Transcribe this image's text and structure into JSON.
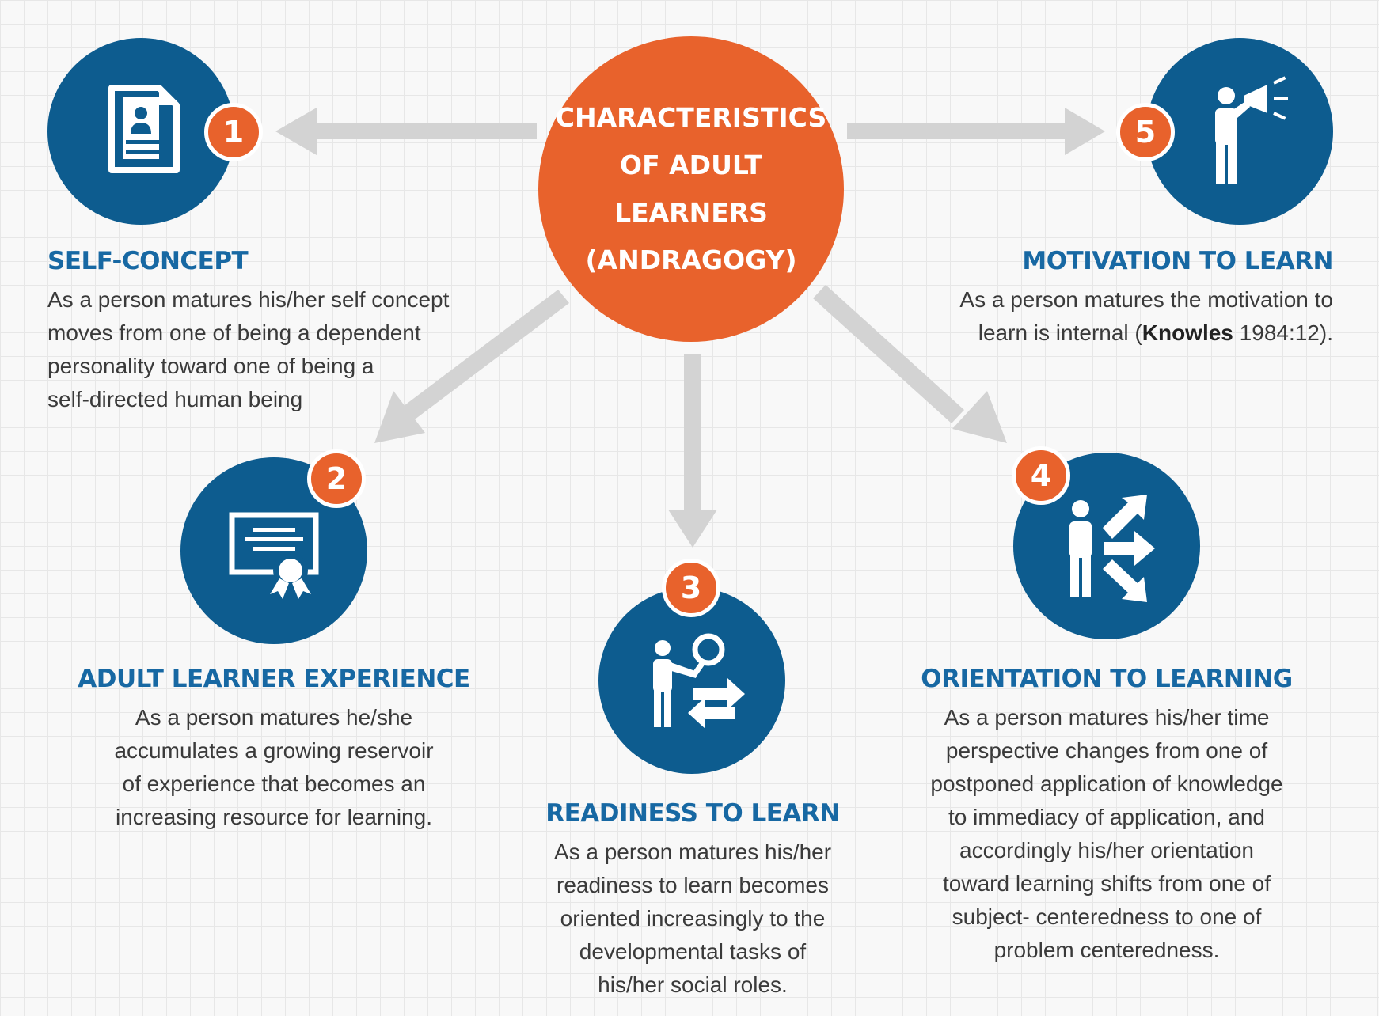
{
  "center": {
    "title_lines": [
      "CHARACTERISTICS",
      "OF ADULT LEARNERS",
      "(ANDRAGOGY)"
    ]
  },
  "colors": {
    "orange": "#e8622c",
    "blue": "#0d5c8f",
    "heading": "#1768a3",
    "arrow": "#d3d3d3"
  },
  "items": [
    {
      "number": "1",
      "icon": "document-profile-icon",
      "title": "SELF-CONCEPT",
      "lines": [
        "As a person matures his/her self concept",
        "moves from one of being a dependent",
        "personality toward one of being a",
        "self-directed human being"
      ]
    },
    {
      "number": "2",
      "icon": "certificate-icon",
      "title": "ADULT LEARNER EXPERIENCE",
      "lines": [
        "As a person matures he/she",
        "accumulates a growing reservoir",
        "of experience that becomes an",
        "increasing resource for learning."
      ]
    },
    {
      "number": "3",
      "icon": "person-search-exchange-icon",
      "title": "READINESS TO LEARN",
      "lines": [
        "As a person matures his/her",
        "readiness to learn becomes",
        "oriented increasingly to the",
        "developmental tasks of",
        "his/her social roles."
      ]
    },
    {
      "number": "4",
      "icon": "person-directions-icon",
      "title": "ORIENTATION TO LEARNING",
      "lines": [
        "As a person matures his/her time",
        "perspective changes from one of",
        "postponed application of knowledge",
        "to immediacy of application, and",
        "accordingly his/her orientation",
        "toward learning shifts from one of",
        "subject- centeredness to one of",
        "problem centeredness."
      ]
    },
    {
      "number": "5",
      "icon": "person-megaphone-icon",
      "title": "MOTIVATION TO LEARN",
      "lines": [
        "As a person matures the motivation to"
      ],
      "line2_prefix": "learn is internal (",
      "line2_bold": "Knowles",
      "line2_suffix": " 1984:12)."
    }
  ]
}
